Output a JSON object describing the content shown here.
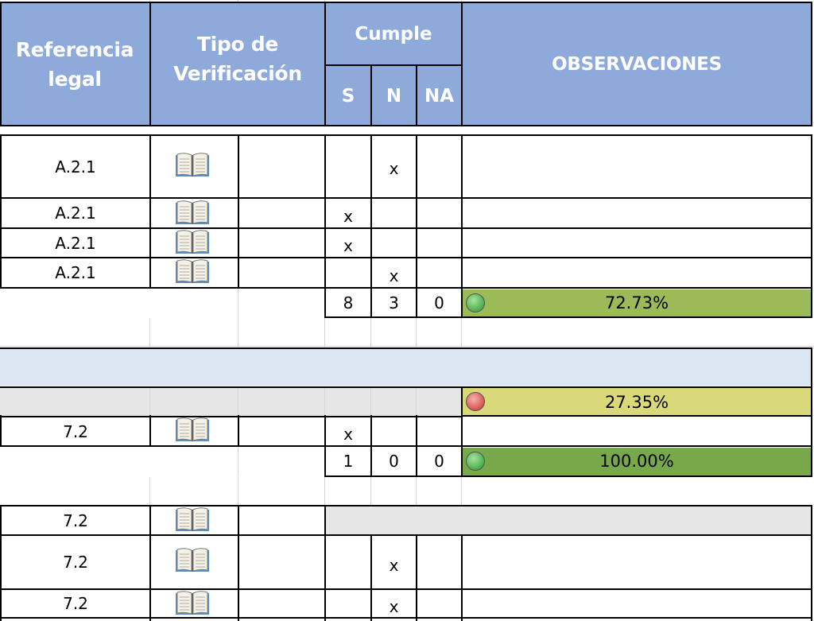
{
  "header": {
    "ref_line1": "Referencia",
    "ref_line2": "legal",
    "tipo_line1": "Tipo de",
    "tipo_line2": "Verificación",
    "cumple": "Cumple",
    "s": "S",
    "n": "N",
    "na": "NA",
    "obs": "OBSERVACIONES"
  },
  "colors": {
    "header_bg": "#8eaadb",
    "green_bar": "#9bbb59",
    "green_bar_2": "#77a84a",
    "yellow_bar": "#d9d97a",
    "section_blue": "#dce6f2",
    "gray_band": "#e6e6e6",
    "green_dot": "#5cb85c",
    "red_dot": "#e06060"
  },
  "rows": [
    {
      "ref": "A.2.1",
      "icon": "book-icon",
      "s": "",
      "n": "x",
      "na": ""
    },
    {
      "ref": "A.2.1",
      "icon": "book-icon",
      "s": "x",
      "n": "",
      "na": ""
    },
    {
      "ref": "A.2.1",
      "icon": "book-icon",
      "s": "x",
      "n": "",
      "na": ""
    },
    {
      "ref": "A.2.1",
      "icon": "book-icon",
      "s": "",
      "n": "x",
      "na": ""
    }
  ],
  "total1": {
    "s": "8",
    "n": "3",
    "na": "0",
    "pct": "72.73%",
    "status": "green"
  },
  "section_total": {
    "pct": "27.35%",
    "status": "red"
  },
  "row_72a": {
    "ref": "7.2",
    "icon": "book-icon",
    "s": "x",
    "n": "",
    "na": ""
  },
  "total2": {
    "s": "1",
    "n": "0",
    "na": "0",
    "pct": "100.00%",
    "status": "green"
  },
  "rows_72b": [
    {
      "ref": "7.2",
      "icon": "book-icon",
      "s": "",
      "n": "",
      "na": ""
    },
    {
      "ref": "7.2",
      "icon": "book-icon",
      "s": "",
      "n": "x",
      "na": ""
    },
    {
      "ref": "7.2",
      "icon": "book-icon",
      "s": "",
      "n": "x",
      "na": ""
    }
  ]
}
